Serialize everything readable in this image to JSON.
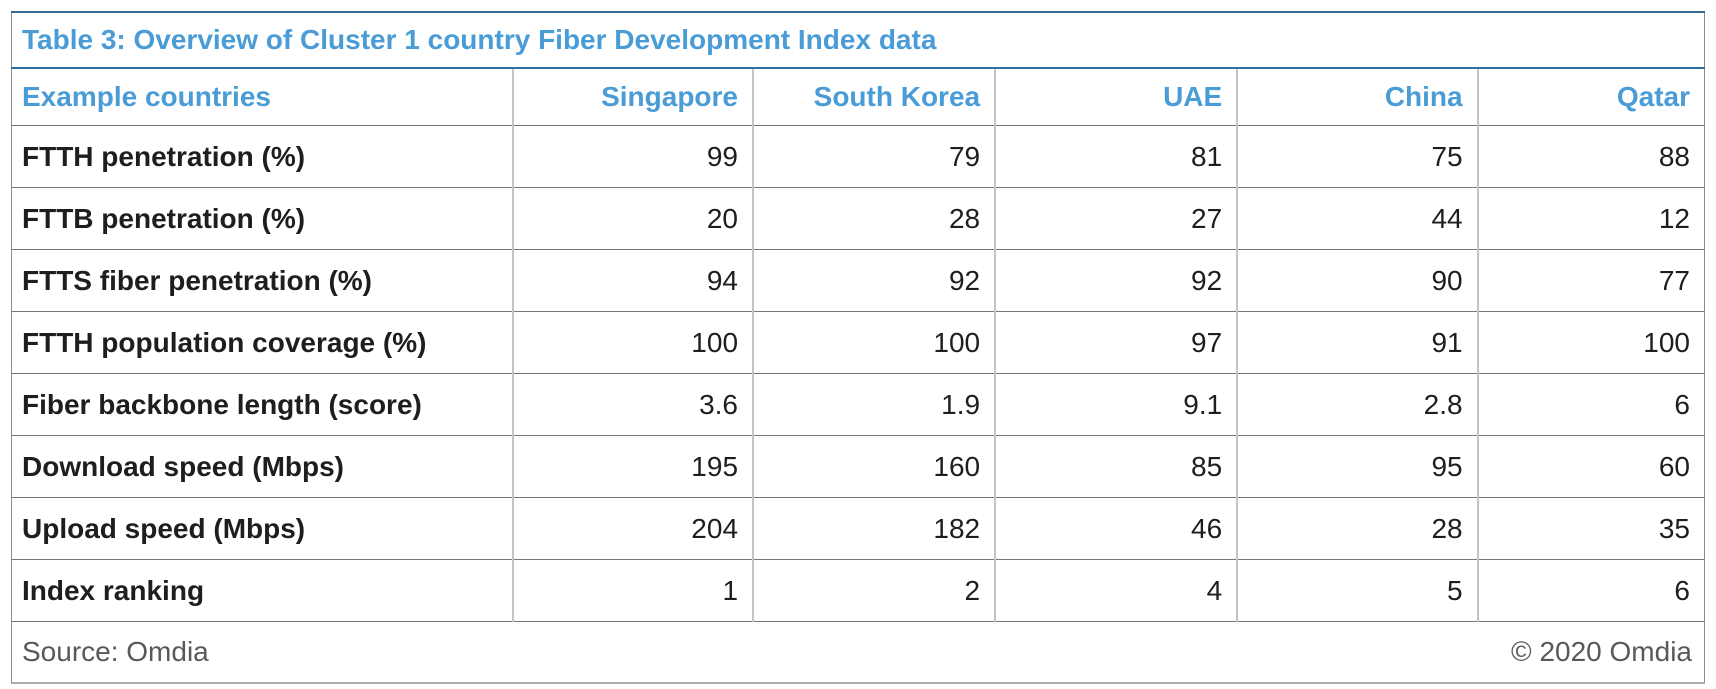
{
  "colors": {
    "accent_blue": "#4A9CD6",
    "title_underline": "#2A6FA6",
    "top_border": "#336C8C",
    "grid_horizontal": "#757575",
    "grid_vertical": "#C3C3C3",
    "text_dark": "#1E1E1E",
    "footer_gray": "#595959"
  },
  "table": {
    "title": "Table 3: Overview of Cluster 1 country Fiber Development Index data",
    "header": {
      "label": "Example countries",
      "countries": [
        "Singapore",
        "South Korea",
        "UAE",
        "China",
        "Qatar"
      ]
    },
    "rows": [
      {
        "label": "FTTH penetration (%)",
        "values": [
          "99",
          "79",
          "81",
          "75",
          "88"
        ]
      },
      {
        "label": "FTTB penetration (%)",
        "values": [
          "20",
          "28",
          "27",
          "44",
          "12"
        ]
      },
      {
        "label": "FTTS fiber penetration (%)",
        "values": [
          "94",
          "92",
          "92",
          "90",
          "77"
        ]
      },
      {
        "label": "FTTH population coverage (%)",
        "values": [
          "100",
          "100",
          "97",
          "91",
          "100"
        ]
      },
      {
        "label": "Fiber backbone length (score)",
        "values": [
          "3.6",
          "1.9",
          "9.1",
          "2.8",
          "6"
        ]
      },
      {
        "label": "Download speed (Mbps)",
        "values": [
          "195",
          "160",
          "85",
          "95",
          "60"
        ]
      },
      {
        "label": "Upload speed (Mbps)",
        "values": [
          "204",
          "182",
          "46",
          "28",
          "35"
        ]
      },
      {
        "label": "Index ranking",
        "values": [
          "1",
          "2",
          "4",
          "5",
          "6"
        ]
      }
    ],
    "footer": {
      "source": "Source: Omdia",
      "copyright": "© 2020 Omdia"
    }
  },
  "chart_data": {
    "type": "table",
    "title": "Table 3: Overview of Cluster 1 country Fiber Development Index data",
    "columns": [
      "Example countries",
      "Singapore",
      "South Korea",
      "UAE",
      "China",
      "Qatar"
    ],
    "series": [
      {
        "name": "FTTH penetration (%)",
        "values": [
          99,
          79,
          81,
          75,
          88
        ]
      },
      {
        "name": "FTTB penetration (%)",
        "values": [
          20,
          28,
          27,
          44,
          12
        ]
      },
      {
        "name": "FTTS fiber penetration (%)",
        "values": [
          94,
          92,
          92,
          90,
          77
        ]
      },
      {
        "name": "FTTH population coverage (%)",
        "values": [
          100,
          100,
          97,
          91,
          100
        ]
      },
      {
        "name": "Fiber backbone length (score)",
        "values": [
          3.6,
          1.9,
          9.1,
          2.8,
          6
        ]
      },
      {
        "name": "Download speed (Mbps)",
        "values": [
          195,
          160,
          85,
          95,
          60
        ]
      },
      {
        "name": "Upload speed (Mbps)",
        "values": [
          204,
          182,
          46,
          28,
          35
        ]
      },
      {
        "name": "Index ranking",
        "values": [
          1,
          2,
          4,
          5,
          6
        ]
      }
    ],
    "source": "Source: Omdia",
    "copyright": "© 2020 Omdia"
  }
}
